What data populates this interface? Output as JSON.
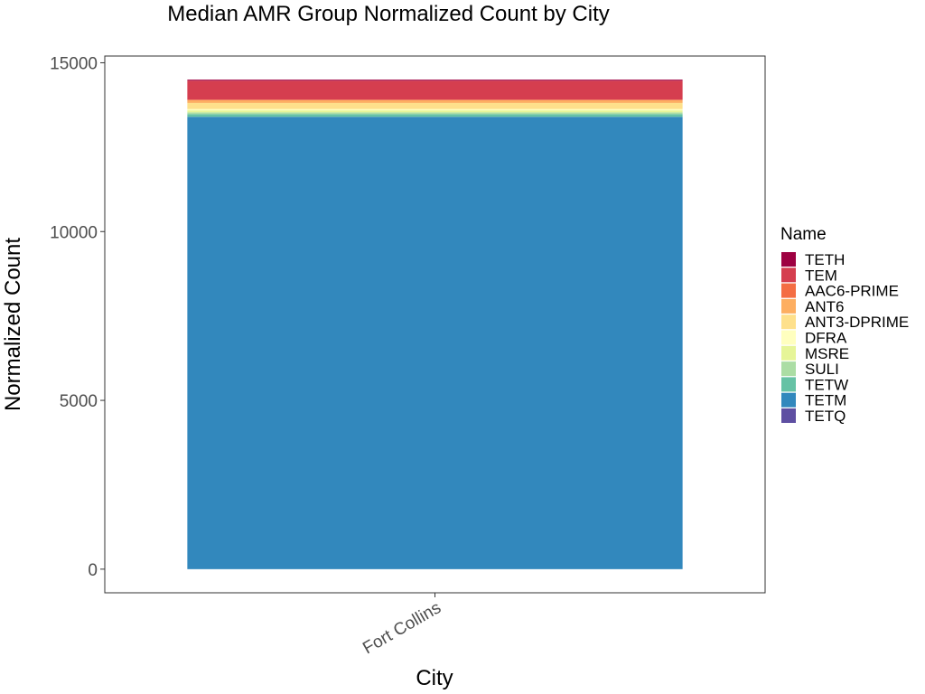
{
  "chart_data": {
    "type": "bar",
    "stacked": true,
    "title": "Median AMR Group Normalized Count by City",
    "xlabel": "City",
    "ylabel": "Normalized Count",
    "categories": [
      "Fort Collins"
    ],
    "ylim": [
      -700,
      15200
    ],
    "yticks": [
      0,
      5000,
      10000,
      15000
    ],
    "yticks_labels": [
      "0",
      "5000",
      "10000",
      "15000"
    ],
    "legend": {
      "title": "Name",
      "position": "right"
    },
    "series": [
      {
        "name": "TETH",
        "values": [
          30
        ],
        "color": "#9E0142"
      },
      {
        "name": "TEM",
        "values": [
          560
        ],
        "color": "#D53E4F"
      },
      {
        "name": "AAC6-PRIME",
        "values": [
          20
        ],
        "color": "#F46D43"
      },
      {
        "name": "ANT6",
        "values": [
          80
        ],
        "color": "#FDAE61"
      },
      {
        "name": "ANT3-DPRIME",
        "values": [
          180
        ],
        "color": "#FEE08B"
      },
      {
        "name": "DFRA",
        "values": [
          40
        ],
        "color": "#FFFFBF"
      },
      {
        "name": "MSRE",
        "values": [
          60
        ],
        "color": "#E6F598"
      },
      {
        "name": "SULI",
        "values": [
          50
        ],
        "color": "#ABDDA4"
      },
      {
        "name": "TETW",
        "values": [
          80
        ],
        "color": "#66C2A5"
      },
      {
        "name": "TETM",
        "values": [
          13400
        ],
        "color": "#3288BD"
      },
      {
        "name": "TETQ",
        "values": [
          0
        ],
        "color": "#5E4FA2"
      }
    ]
  }
}
